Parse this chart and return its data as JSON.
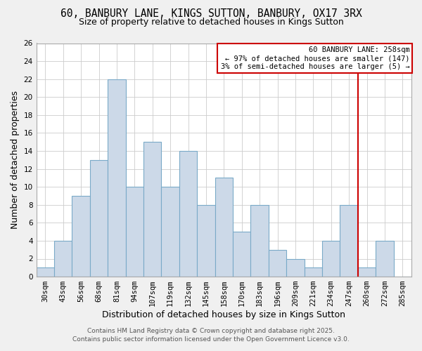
{
  "title": "60, BANBURY LANE, KINGS SUTTON, BANBURY, OX17 3RX",
  "subtitle": "Size of property relative to detached houses in Kings Sutton",
  "xlabel": "Distribution of detached houses by size in Kings Sutton",
  "ylabel": "Number of detached properties",
  "categories": [
    "30sqm",
    "43sqm",
    "56sqm",
    "68sqm",
    "81sqm",
    "94sqm",
    "107sqm",
    "119sqm",
    "132sqm",
    "145sqm",
    "158sqm",
    "170sqm",
    "183sqm",
    "196sqm",
    "209sqm",
    "221sqm",
    "234sqm",
    "247sqm",
    "260sqm",
    "272sqm",
    "285sqm"
  ],
  "values": [
    1,
    4,
    9,
    13,
    22,
    10,
    15,
    10,
    14,
    8,
    11,
    5,
    8,
    3,
    2,
    1,
    4,
    8,
    1,
    4,
    0
  ],
  "bar_color": "#ccd9e8",
  "bar_edge_color": "#7aaac8",
  "vline_color": "#cc0000",
  "annotation_text": "60 BANBURY LANE: 258sqm\n← 97% of detached houses are smaller (147)\n3% of semi-detached houses are larger (5) →",
  "annotation_box_color": "#cc0000",
  "ylim": [
    0,
    26
  ],
  "yticks": [
    0,
    2,
    4,
    6,
    8,
    10,
    12,
    14,
    16,
    18,
    20,
    22,
    24,
    26
  ],
  "grid_color": "#cccccc",
  "plot_bg_color": "#ffffff",
  "fig_bg_color": "#f0f0f0",
  "footer1": "Contains HM Land Registry data © Crown copyright and database right 2025.",
  "footer2": "Contains public sector information licensed under the Open Government Licence v3.0.",
  "title_fontsize": 10.5,
  "subtitle_fontsize": 9,
  "axis_label_fontsize": 9,
  "tick_fontsize": 7.5,
  "annotation_fontsize": 7.5,
  "footer_fontsize": 6.5
}
